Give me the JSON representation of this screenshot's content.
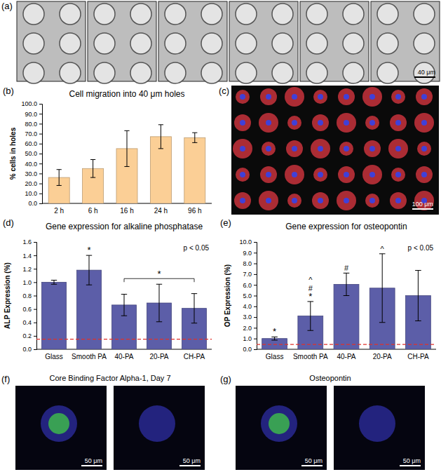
{
  "chart_data": [
    {
      "type": "bar",
      "panel_label": "(b)",
      "title": "Cell migration into 40 μm holes",
      "y_label": "% cells in holes",
      "categories": [
        "2 h",
        "6 h",
        "16 h",
        "24 h",
        "96 h"
      ],
      "values": [
        26,
        35,
        55,
        67,
        66
      ],
      "errors": [
        8,
        9,
        18,
        12,
        5
      ],
      "color": "#fbcf96",
      "ylim": [
        0,
        100
      ],
      "yticks": [
        {
          "value": 0,
          "label": "0.0"
        },
        {
          "value": 10,
          "label": "10.0"
        },
        {
          "value": 20,
          "label": "20.0"
        },
        {
          "value": 30,
          "label": "30.0"
        },
        {
          "value": 40,
          "label": "40.0"
        },
        {
          "value": 50,
          "label": "50.0"
        },
        {
          "value": 60,
          "label": "60.0"
        },
        {
          "value": 70,
          "label": "70.0"
        },
        {
          "value": 80,
          "label": "80.0"
        },
        {
          "value": 90,
          "label": "90.0"
        },
        {
          "value": 100,
          "label": "100.0"
        }
      ],
      "grid": false
    },
    {
      "type": "bar",
      "panel_label": "(d)",
      "title": "Gene expression for alkaline phosphatase",
      "y_label": "ALP Expression (%)",
      "categories": [
        "Glass",
        "Smooth PA",
        "40-PA",
        "20-PA",
        "CH-PA"
      ],
      "values": [
        1.0,
        1.18,
        0.66,
        0.69,
        0.61
      ],
      "errors": [
        0.03,
        0.22,
        0.16,
        0.28,
        0.22
      ],
      "color": "#5c5ea8",
      "reference_line": 0.15,
      "note": "p < 0.05",
      "annotations": [
        {
          "text": "*",
          "categories": [
            "Smooth PA"
          ]
        },
        {
          "text": "*",
          "span": [
            "40-PA",
            "CH-PA"
          ]
        }
      ],
      "ylim": [
        0,
        1.6
      ],
      "yticks": [
        {
          "value": 0,
          "label": "0.0"
        },
        {
          "value": 0.2,
          "label": "0.2"
        },
        {
          "value": 0.4,
          "label": "0.4"
        },
        {
          "value": 0.6,
          "label": "0.6"
        },
        {
          "value": 0.8,
          "label": "0.8"
        },
        {
          "value": 1.0,
          "label": "1.0"
        },
        {
          "value": 1.2,
          "label": "1.2"
        },
        {
          "value": 1.4,
          "label": "1.4"
        },
        {
          "value": 1.6,
          "label": "1.6"
        }
      ],
      "grid": false
    },
    {
      "type": "bar",
      "panel_label": "(e)",
      "title": "Gene expression for osteopontin",
      "y_label": "OP Expression (%)",
      "categories": [
        "Glass",
        "Smooth PA",
        "40-PA",
        "20-PA",
        "CH-PA"
      ],
      "values": [
        1.0,
        3.1,
        6.05,
        5.7,
        5.0
      ],
      "errors": [
        0.15,
        1.35,
        1.05,
        3.2,
        2.35
      ],
      "color": "#5c5ea8",
      "reference_line": 0.45,
      "note": "p < 0.05",
      "annotations": [
        {
          "text": "*",
          "categories": [
            "Glass",
            "Smooth PA"
          ]
        },
        {
          "text": "#",
          "categories": [
            "Smooth PA",
            "40-PA"
          ]
        },
        {
          "text": "^",
          "categories": [
            "Smooth PA",
            "20-PA"
          ]
        }
      ],
      "ylim": [
        0,
        10
      ],
      "yticks": [
        {
          "value": 0,
          "label": "0.0"
        },
        {
          "value": 1,
          "label": "1.0"
        },
        {
          "value": 2,
          "label": "2.0"
        },
        {
          "value": 3,
          "label": "3.0"
        },
        {
          "value": 4,
          "label": "4.0"
        },
        {
          "value": 5,
          "label": "5.0"
        },
        {
          "value": 6,
          "label": "6.0"
        },
        {
          "value": 7,
          "label": "7.0"
        },
        {
          "value": 8,
          "label": "8.0"
        },
        {
          "value": 9,
          "label": "9.0"
        },
        {
          "value": 10,
          "label": "10.0"
        }
      ],
      "grid": false
    }
  ],
  "image_panels": [
    {
      "label": "(a)",
      "scale_bar": "40 μm"
    },
    {
      "label": "(c)",
      "scale_bar": "100 μm"
    },
    {
      "label": "(f)",
      "title": "Core Binding Factor Alpha-1, Day 7",
      "scale_bars": [
        "50 μm",
        "50 μm"
      ]
    },
    {
      "label": "(g)",
      "title": "Osteopontin",
      "scale_bars": [
        "50 μm",
        "50 μm"
      ]
    }
  ]
}
